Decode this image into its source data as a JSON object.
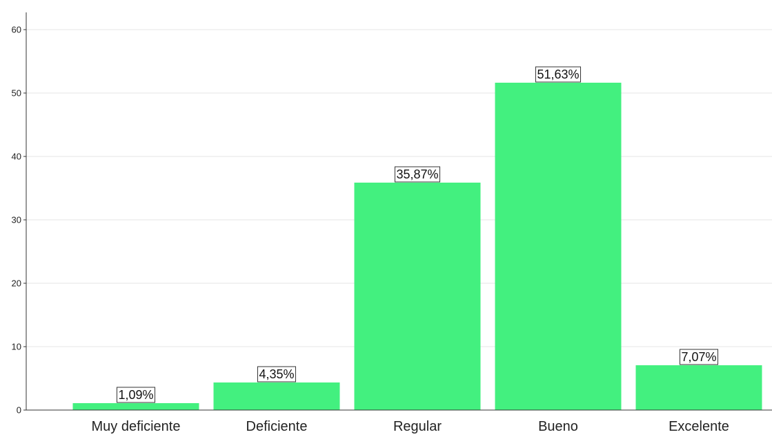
{
  "chart_data": {
    "type": "bar",
    "title": "",
    "xlabel": "",
    "ylabel": "",
    "categories": [
      "Muy deficiente",
      "Deficiente",
      "Regular",
      "Bueno",
      "Excelente"
    ],
    "values": [
      1.09,
      4.35,
      35.87,
      51.63,
      7.07
    ],
    "data_labels": [
      "1,09%",
      "4,35%",
      "35,87%",
      "51,63%",
      "7,07%"
    ],
    "ylim": [
      0,
      60
    ],
    "yticks": [
      0,
      10,
      20,
      30,
      40,
      50,
      60
    ],
    "ytick_labels": [
      "0",
      "10",
      "20",
      "30",
      "40",
      "50",
      "60"
    ],
    "grid": true,
    "bar_color": "#43f07f",
    "grid_color": "#e6e6e6",
    "axis_color": "#333333"
  }
}
